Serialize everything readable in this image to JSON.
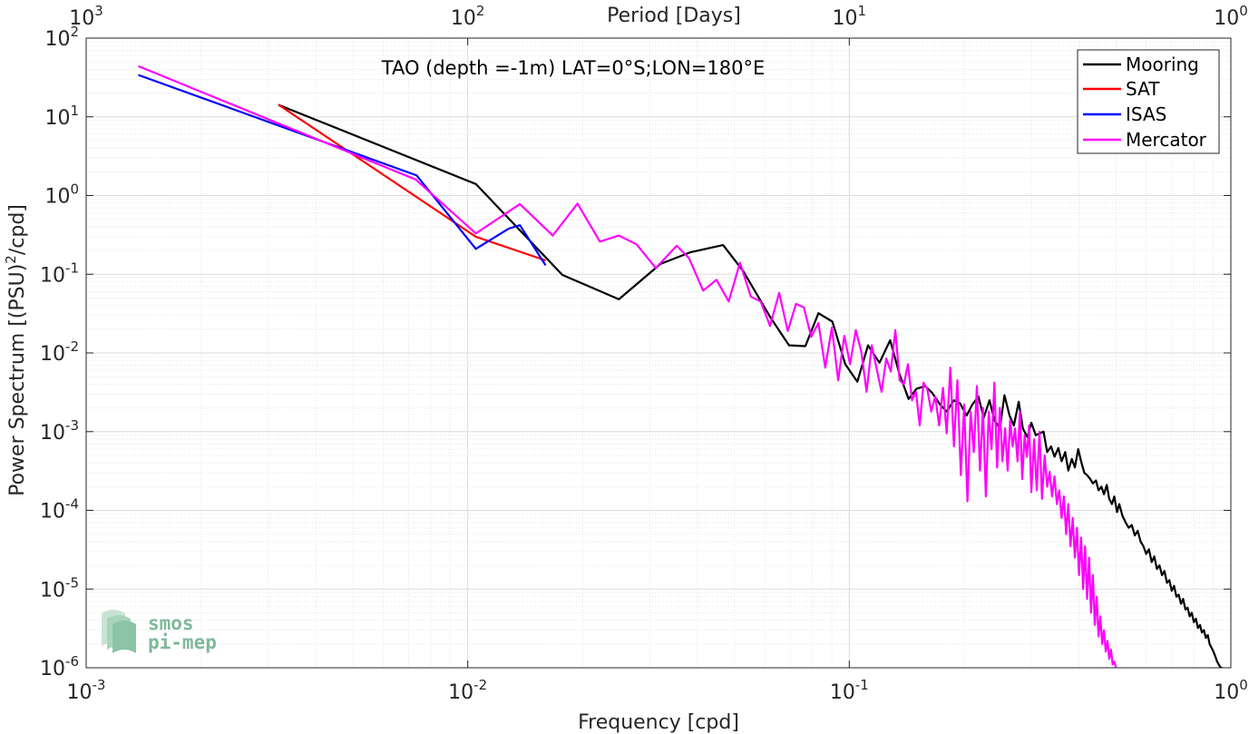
{
  "chart_data": {
    "type": "line",
    "title": "TAO (depth =-1m) LAT=0°S;LON=180°E",
    "xlabel": "Frequency [cpd]",
    "ylabel": "Power Spectrum [(PSU)",
    "ylabel_sup": "2",
    "ylabel_tail": "/cpd]",
    "top_axis_label": "Period [Days]",
    "x_scale": "log",
    "y_scale": "log",
    "xlim": [
      0.001,
      1
    ],
    "ylim": [
      1e-06,
      100
    ],
    "grid": true,
    "legend_position": "top-right",
    "x_ticks": [
      {
        "value": 0.001,
        "base": "10",
        "exp": "-3"
      },
      {
        "value": 0.01,
        "base": "10",
        "exp": "-2"
      },
      {
        "value": 0.1,
        "base": "10",
        "exp": "-1"
      },
      {
        "value": 1,
        "base": "10",
        "exp": "0"
      }
    ],
    "top_ticks": [
      {
        "value": 0.001,
        "base": "10",
        "exp": "3"
      },
      {
        "value": 0.01,
        "base": "10",
        "exp": "2"
      },
      {
        "value": 0.1,
        "base": "10",
        "exp": "1"
      },
      {
        "value": 1,
        "base": "10",
        "exp": "0"
      }
    ],
    "y_ticks": [
      {
        "value": 100,
        "base": "10",
        "exp": "2"
      },
      {
        "value": 10,
        "base": "10",
        "exp": "1"
      },
      {
        "value": 1,
        "base": "10",
        "exp": "0"
      },
      {
        "value": 0.1,
        "base": "10",
        "exp": "-1"
      },
      {
        "value": 0.01,
        "base": "10",
        "exp": "-2"
      },
      {
        "value": 0.001,
        "base": "10",
        "exp": "-3"
      },
      {
        "value": 0.0001,
        "base": "10",
        "exp": "-4"
      },
      {
        "value": 1e-05,
        "base": "10",
        "exp": "-5"
      },
      {
        "value": 1e-06,
        "base": "10",
        "exp": "-6"
      }
    ],
    "series": [
      {
        "name": "Mooring",
        "color": "#000000",
        "x": [
          0.00319,
          0.0105,
          0.0177,
          0.0249,
          0.032,
          0.0383,
          0.0467,
          0.0527,
          0.0622,
          0.0695,
          0.0767,
          0.083,
          0.0903,
          0.0976,
          0.105,
          0.112,
          0.12,
          0.128,
          0.135,
          0.143,
          0.15,
          0.158,
          0.165,
          0.173,
          0.18,
          0.188,
          0.195,
          0.203,
          0.21,
          0.218,
          0.225,
          0.233,
          0.24,
          0.248,
          0.255,
          0.263,
          0.27,
          0.278,
          0.285,
          0.293,
          0.3,
          0.308,
          0.315,
          0.323,
          0.33,
          0.338,
          0.345,
          0.353,
          0.36,
          0.368,
          0.375,
          0.383,
          0.39,
          0.398,
          0.405,
          0.413,
          0.42,
          0.428,
          0.435,
          0.443,
          0.45,
          0.458,
          0.465,
          0.473,
          0.48,
          0.488,
          0.495,
          0.503,
          0.51,
          0.52,
          0.53,
          0.54,
          0.55,
          0.56,
          0.57,
          0.58,
          0.59,
          0.6,
          0.61,
          0.62,
          0.63,
          0.64,
          0.65,
          0.66,
          0.67,
          0.68,
          0.69,
          0.7,
          0.71,
          0.72,
          0.73,
          0.74,
          0.75,
          0.76,
          0.77,
          0.78,
          0.79,
          0.8,
          0.81,
          0.82,
          0.83,
          0.84,
          0.85,
          0.86,
          0.87,
          0.88,
          0.89,
          0.9,
          0.91,
          0.92,
          0.93,
          0.94,
          0.95
        ],
        "y": [
          14.2,
          1.4,
          0.098,
          0.048,
          0.135,
          0.19,
          0.235,
          0.11,
          0.028,
          0.0125,
          0.0122,
          0.032,
          0.025,
          0.0072,
          0.0043,
          0.0125,
          0.0075,
          0.0145,
          0.0056,
          0.0026,
          0.0035,
          0.0038,
          0.0031,
          0.0022,
          0.0018,
          0.0025,
          0.0023,
          0.0016,
          0.0022,
          0.0028,
          0.0015,
          0.0025,
          0.0014,
          0.0011,
          0.0029,
          0.0016,
          0.0012,
          0.0024,
          0.0011,
          0.00085,
          0.0013,
          0.0009,
          0.00095,
          0.001,
          0.00055,
          0.00065,
          0.00048,
          0.00062,
          0.00042,
          0.00055,
          0.00032,
          0.00045,
          0.00035,
          0.0006,
          0.00042,
          0.0003,
          0.00028,
          0.00025,
          0.00022,
          0.00024,
          0.00018,
          0.0002,
          0.00016,
          0.00021,
          0.00014,
          0.00012,
          0.00015,
          9.5e-05,
          0.00012,
          8.5e-05,
          7e-05,
          6e-05,
          6.5e-05,
          4.8e-05,
          5.5e-05,
          4e-05,
          3.5e-05,
          2.8e-05,
          3.2e-05,
          2.2e-05,
          2.6e-05,
          1.8e-05,
          2e-05,
          1.5e-05,
          1.7e-05,
          1.2e-05,
          1.3e-05,
          9.5e-06,
          1.1e-05,
          8e-06,
          8.5e-06,
          6.5e-06,
          7.5e-06,
          5.5e-06,
          5.8e-06,
          4.5e-06,
          5e-06,
          3.8e-06,
          4.2e-06,
          3.2e-06,
          3.5e-06,
          2.8e-06,
          3e-06,
          2.4e-06,
          2.6e-06,
          2e-06,
          1.8e-06,
          1.6e-06,
          1.4e-06,
          1.2e-06,
          1.1e-06,
          1e-06,
          1e-06
        ]
      },
      {
        "name": "SAT",
        "color": "#ff0000",
        "x": [
          0.00319,
          0.0105,
          0.016
        ],
        "y": [
          14.3,
          0.3,
          0.15
        ]
      },
      {
        "name": "ISAS",
        "color": "#0000ff",
        "x": [
          0.00137,
          0.00735,
          0.0105,
          0.0128,
          0.0137,
          0.016
        ],
        "y": [
          34.0,
          1.8,
          0.21,
          0.38,
          0.42,
          0.13
        ]
      },
      {
        "name": "Mercator",
        "color": "#ff00ff",
        "x": [
          0.00137,
          0.0073,
          0.0105,
          0.0137,
          0.0167,
          0.0194,
          0.0222,
          0.0249,
          0.0277,
          0.0311,
          0.0353,
          0.038,
          0.0414,
          0.0449,
          0.0483,
          0.0517,
          0.0552,
          0.0586,
          0.062,
          0.0655,
          0.069,
          0.0725,
          0.076,
          0.0795,
          0.083,
          0.0865,
          0.09,
          0.0935,
          0.097,
          0.1005,
          0.104,
          0.1075,
          0.111,
          0.1145,
          0.118,
          0.1215,
          0.125,
          0.1285,
          0.132,
          0.1355,
          0.139,
          0.1425,
          0.146,
          0.1495,
          0.153,
          0.1565,
          0.16,
          0.164,
          0.168,
          0.172,
          0.176,
          0.18,
          0.184,
          0.188,
          0.192,
          0.196,
          0.2,
          0.204,
          0.208,
          0.212,
          0.216,
          0.22,
          0.224,
          0.228,
          0.232,
          0.236,
          0.24,
          0.244,
          0.248,
          0.252,
          0.256,
          0.26,
          0.264,
          0.268,
          0.272,
          0.276,
          0.28,
          0.284,
          0.288,
          0.292,
          0.296,
          0.3,
          0.305,
          0.31,
          0.315,
          0.32,
          0.325,
          0.33,
          0.335,
          0.34,
          0.345,
          0.35,
          0.355,
          0.36,
          0.365,
          0.37,
          0.375,
          0.38,
          0.385,
          0.39,
          0.395,
          0.4,
          0.405,
          0.41,
          0.415,
          0.42,
          0.425,
          0.43,
          0.435,
          0.44,
          0.445,
          0.45,
          0.455,
          0.46,
          0.465,
          0.47,
          0.475,
          0.48,
          0.485,
          0.49,
          0.495,
          0.5
        ],
        "y": [
          44.0,
          1.6,
          0.33,
          0.78,
          0.31,
          0.79,
          0.26,
          0.31,
          0.24,
          0.12,
          0.23,
          0.16,
          0.062,
          0.085,
          0.045,
          0.14,
          0.052,
          0.045,
          0.022,
          0.058,
          0.019,
          0.042,
          0.038,
          0.016,
          0.024,
          0.0065,
          0.021,
          0.0045,
          0.0165,
          0.0072,
          0.0195,
          0.0105,
          0.0032,
          0.0125,
          0.0062,
          0.0032,
          0.0085,
          0.0058,
          0.0195,
          0.0045,
          0.004,
          0.0072,
          0.0025,
          0.0032,
          0.0012,
          0.0042,
          0.0035,
          0.0018,
          0.0028,
          0.0012,
          0.0036,
          0.00095,
          0.0065,
          0.00065,
          0.0045,
          0.00028,
          0.0022,
          0.00013,
          0.0018,
          0.00055,
          0.0038,
          0.00032,
          0.002,
          0.00015,
          0.0018,
          0.0006,
          0.0042,
          0.00035,
          0.002,
          0.00042,
          0.0011,
          0.00032,
          0.0014,
          0.00065,
          0.0011,
          0.00042,
          0.0018,
          0.00025,
          0.0009,
          0.00048,
          0.0012,
          0.00017,
          0.0008,
          0.00018,
          0.001,
          0.00014,
          0.0005,
          0.0002,
          0.00031,
          0.00015,
          0.00027,
          0.00012,
          0.00018,
          8e-05,
          0.00015,
          5e-05,
          0.00012,
          3.5e-05,
          8e-05,
          2.5e-05,
          6e-05,
          1.5e-05,
          4.5e-05,
          1e-05,
          3.5e-05,
          7.5e-06,
          2.5e-05,
          5e-06,
          1.5e-05,
          3.5e-06,
          8e-06,
          2.5e-06,
          4.5e-06,
          2e-06,
          3e-06,
          1.6e-06,
          2.2e-06,
          1.3e-06,
          1.7e-06,
          1.1e-06,
          1.2e-06,
          1e-06
        ]
      }
    ]
  },
  "logo": {
    "line1": "smos",
    "line2": "pi-mep"
  }
}
